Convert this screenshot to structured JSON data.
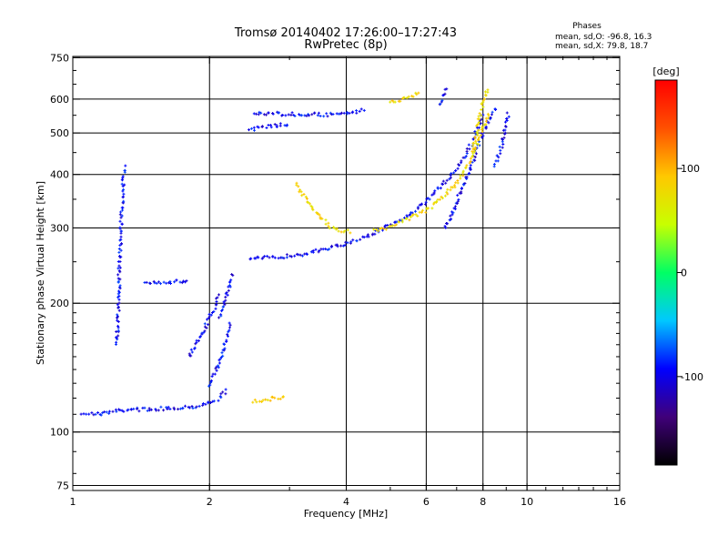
{
  "chart_data": {
    "type": "scatter",
    "title": "Tromsø 20140402 17:26:00–17:27:43",
    "subtitle": "RwPretec (8p)",
    "xlabel": "Frequency [MHz]",
    "ylabel": "Stationary phase Virtual Height [km]",
    "x_scale": "log",
    "y_scale": "log",
    "xlim": [
      1,
      16
    ],
    "ylim": [
      73,
      755
    ],
    "x_ticks": [
      "1",
      "2",
      "4",
      "6",
      "8",
      "10",
      "16"
    ],
    "x_tick_values": [
      1,
      2,
      4,
      6,
      8,
      10,
      16
    ],
    "y_ticks": [
      "750",
      "600",
      "500",
      "400",
      "300",
      "200",
      "100",
      "75"
    ],
    "y_tick_values": [
      750,
      600,
      500,
      400,
      300,
      200,
      100,
      75
    ],
    "grid": true,
    "colorbar": {
      "unit": "[deg]",
      "ticks": [
        "100",
        "0",
        "-100"
      ],
      "tick_values": [
        100,
        0,
        -100
      ],
      "range": [
        -185,
        185
      ],
      "colors": [
        "#000000",
        "#40007a",
        "#0000ff",
        "#00c8ff",
        "#00ff64",
        "#c8ff00",
        "#ffc800",
        "#ff5000",
        "#ff0000"
      ]
    },
    "info": {
      "heading": "Phases",
      "line1": "mean, sd,O: -96.8, 16.3",
      "line2": "mean, sd,X:  79.8, 18.7"
    },
    "series": [
      {
        "mode": "O",
        "phase": -96,
        "segments": [
          {
            "x": [
              1.05,
              1.12,
              1.2,
              1.25,
              1.35,
              1.5,
              1.7,
              1.9,
              2.0,
              2.1,
              2.2
            ],
            "y": [
              111,
              110,
              111,
              112,
              113,
              113,
              114,
              115,
              117,
              120,
              126
            ]
          },
          {
            "x": [
              2.0,
              2.06,
              2.12,
              2.18,
              2.22
            ],
            "y": [
              128,
              138,
              150,
              165,
              180
            ]
          },
          {
            "x": [
              1.8,
              1.85,
              1.9,
              1.95,
              2.0,
              2.05,
              2.1
            ],
            "y": [
              150,
              158,
              166,
              175,
              185,
              195,
              210
            ]
          },
          {
            "x": [
              1.45,
              1.55,
              1.65,
              1.75,
              1.8
            ],
            "y": [
              225,
              224,
              224,
              225,
              226
            ]
          },
          {
            "x": [
              2.45,
              2.6,
              2.8,
              3.0,
              3.3,
              3.6,
              4.0,
              4.5,
              5.0,
              5.5,
              6.0,
              6.4,
              6.8,
              7.2,
              7.5,
              7.8,
              8.0
            ],
            "y": [
              255,
              255,
              256,
              258,
              262,
              268,
              276,
              288,
              304,
              322,
              345,
              370,
              398,
              430,
              465,
              510,
              560
            ]
          },
          {
            "x": [
              2.45,
              2.6,
              2.8,
              3.0
            ],
            "y": [
              510,
              515,
              520,
              525
            ]
          },
          {
            "x": [
              2.5,
              2.8,
              3.2,
              3.6,
              4.0,
              4.4
            ],
            "y": [
              555,
              555,
              552,
              552,
              555,
              565
            ]
          },
          {
            "x": [
              6.6,
              6.8,
              7.0,
              7.2,
              7.4,
              7.6,
              7.8,
              8.0,
              8.3,
              8.6
            ],
            "y": [
              300,
              320,
              345,
              372,
              400,
              430,
              465,
              500,
              540,
              580
            ]
          },
          {
            "x": [
              8.5,
              8.8,
              9.0,
              9.1
            ],
            "y": [
              420,
              470,
              520,
              560
            ]
          },
          {
            "x": [
              1.25,
              1.26,
              1.27,
              1.28,
              1.3
            ],
            "y": [
              160,
              200,
              260,
              330,
              420
            ]
          },
          {
            "x": [
              2.1,
              2.15,
              2.2,
              2.25
            ],
            "y": [
              185,
              200,
              215,
              235
            ]
          },
          {
            "x": [
              6.4,
              6.5,
              6.6,
              6.7
            ],
            "y": [
              580,
              600,
              620,
              640
            ]
          }
        ]
      },
      {
        "mode": "X",
        "phase": 80,
        "segments": [
          {
            "x": [
              3.1,
              3.3,
              3.5,
              3.7,
              3.9,
              4.1
            ],
            "y": [
              380,
              345,
              318,
              302,
              296,
              293
            ]
          },
          {
            "x": [
              4.6,
              5.0,
              5.5,
              6.0,
              6.5,
              7.0,
              7.4,
              7.7,
              8.0,
              8.3
            ],
            "y": [
              295,
              302,
              315,
              330,
              352,
              382,
              420,
              460,
              510,
              560
            ]
          },
          {
            "x": [
              7.6,
              7.8,
              8.0,
              8.2
            ],
            "y": [
              450,
              520,
              590,
              640
            ]
          },
          {
            "x": [
              2.5,
              2.65,
              2.8,
              2.95
            ],
            "y": [
              118,
              119,
              120,
              121
            ]
          },
          {
            "x": [
              5.0,
              5.3,
              5.6,
              5.8
            ],
            "y": [
              590,
              600,
              612,
              625
            ]
          }
        ]
      }
    ]
  }
}
